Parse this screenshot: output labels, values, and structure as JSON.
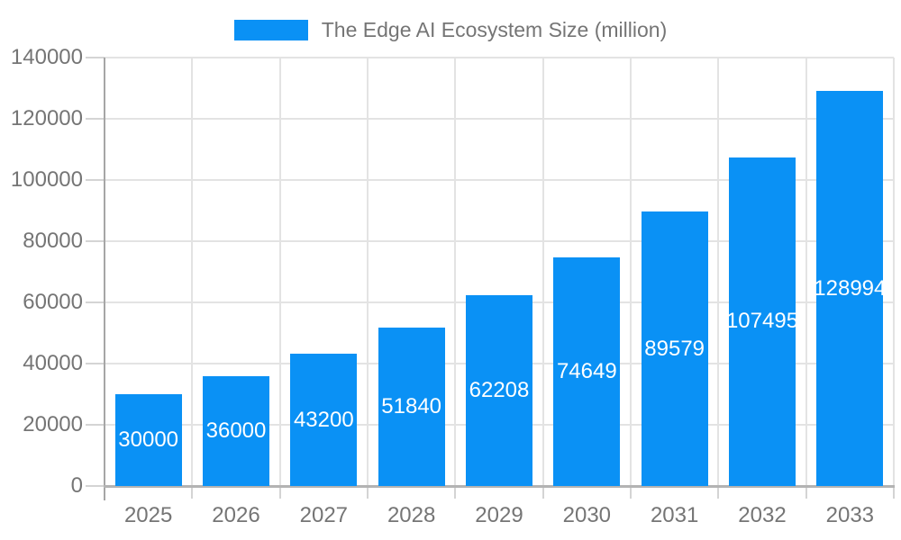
{
  "legend": {
    "label": "The Edge AI Ecosystem Size (million)"
  },
  "chart_data": {
    "type": "bar",
    "title": "The Edge AI Ecosystem Size (million)",
    "categories": [
      "2025",
      "2026",
      "2027",
      "2028",
      "2029",
      "2030",
      "2031",
      "2032",
      "2033"
    ],
    "values": [
      30000,
      36000,
      43200,
      51840,
      62208,
      74649,
      89579,
      107495,
      128994
    ],
    "series": [
      {
        "name": "The Edge AI Ecosystem Size (million)",
        "values": [
          30000,
          36000,
          43200,
          51840,
          62208,
          74649,
          89579,
          107495,
          128994
        ]
      }
    ],
    "xlabel": "",
    "ylabel": "",
    "ylim": [
      0,
      140000
    ],
    "yticks": [
      0,
      20000,
      40000,
      60000,
      80000,
      100000,
      120000,
      140000
    ],
    "grid": true,
    "legend_position": "top-center",
    "value_labels": "inside-center"
  },
  "colors": {
    "bar": "#0a91f5",
    "bar_label": "#ffffff",
    "axis_text": "#757575",
    "gridline": "#e3e3e3",
    "tick": "#d4d4d4",
    "y_axis_line": "#a6a6a6",
    "x_axis_line": "#b3b3b3",
    "background": "#ffffff"
  }
}
